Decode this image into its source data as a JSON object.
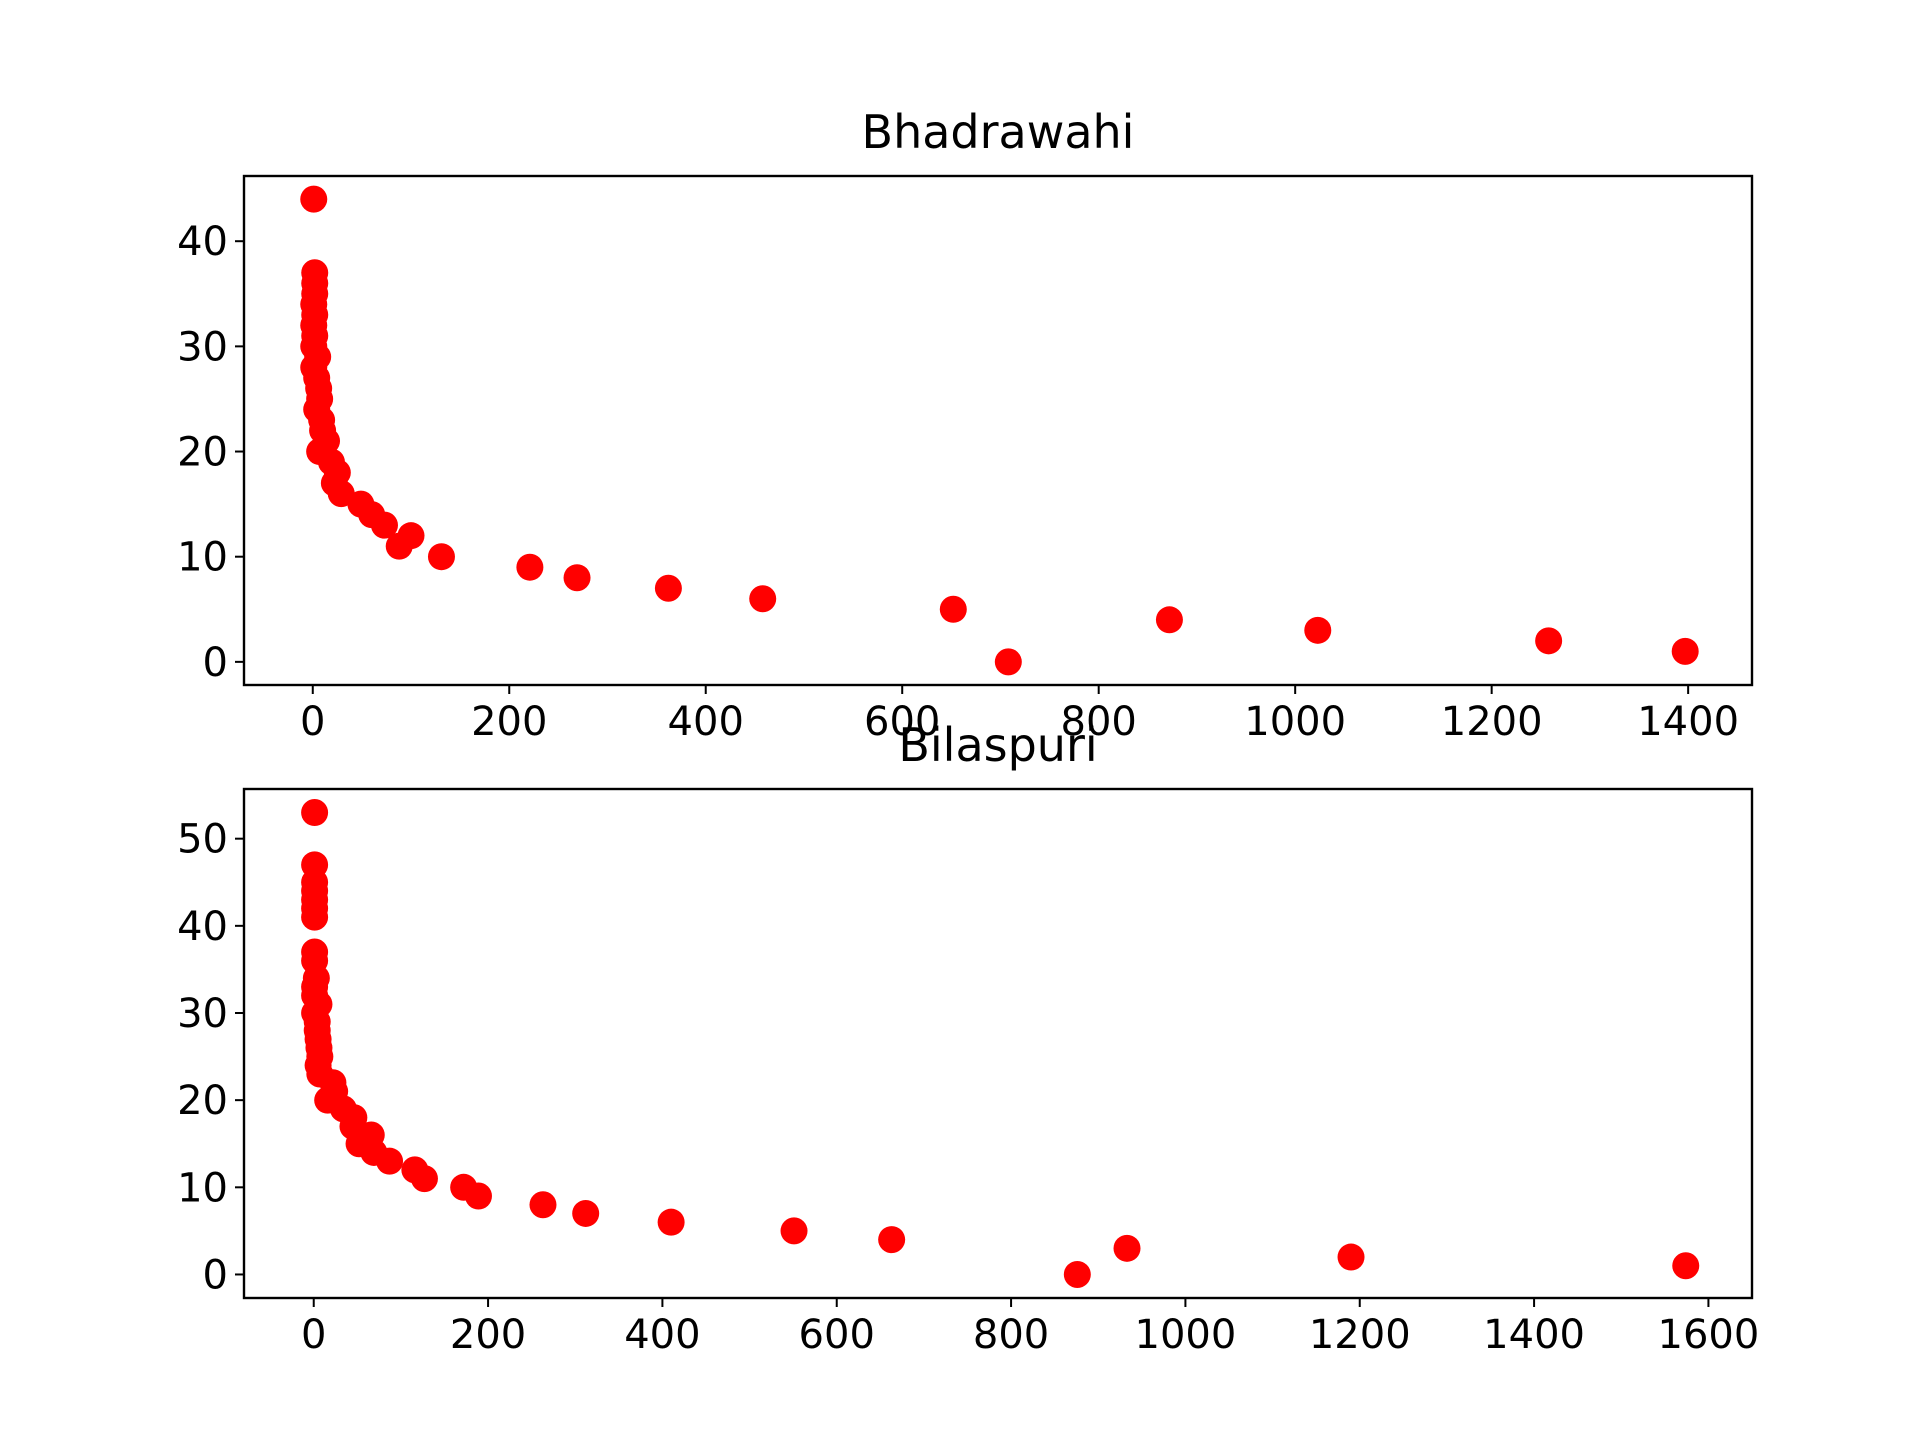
{
  "colors": {
    "marker": "#ff0000",
    "axes": "#000000",
    "background": "#ffffff"
  },
  "chart_data": [
    {
      "type": "scatter",
      "title": "Bhadrawahi",
      "xlabel": "",
      "ylabel": "",
      "xlim": [
        -70,
        1465
      ],
      "ylim": [
        -2.2,
        46.2
      ],
      "x_ticks": [
        0,
        200,
        400,
        600,
        800,
        1000,
        1200,
        1400
      ],
      "y_ticks": [
        0,
        10,
        20,
        30,
        40
      ],
      "grid": false,
      "legend": "none",
      "series": [
        {
          "marker_color": "#ff0000",
          "points": [
            [
              1,
              44
            ],
            [
              2,
              37
            ],
            [
              2,
              36
            ],
            [
              2,
              35
            ],
            [
              1,
              34
            ],
            [
              2,
              33
            ],
            [
              1,
              32
            ],
            [
              2,
              31
            ],
            [
              1,
              30
            ],
            [
              5,
              29
            ],
            [
              1,
              28
            ],
            [
              4,
              27
            ],
            [
              6,
              26
            ],
            [
              7,
              25
            ],
            [
              4,
              24
            ],
            [
              9,
              23
            ],
            [
              10,
              22
            ],
            [
              14,
              21
            ],
            [
              7,
              20
            ],
            [
              19,
              19
            ],
            [
              25,
              18
            ],
            [
              22,
              17
            ],
            [
              29,
              16
            ],
            [
              49,
              15
            ],
            [
              60,
              14
            ],
            [
              73,
              13
            ],
            [
              100,
              12
            ],
            [
              88,
              11
            ],
            [
              131,
              10
            ],
            [
              221,
              9
            ],
            [
              269,
              8
            ],
            [
              362,
              7
            ],
            [
              458,
              6
            ],
            [
              652,
              5
            ],
            [
              872,
              4
            ],
            [
              1023,
              3
            ],
            [
              1258,
              2
            ],
            [
              1397,
              1
            ],
            [
              708,
              0
            ]
          ]
        }
      ]
    },
    {
      "type": "scatter",
      "title": "Bilaspuri",
      "xlabel": "",
      "ylabel": "",
      "xlim": [
        -80,
        1650
      ],
      "ylim": [
        -2.7,
        55.7
      ],
      "x_ticks": [
        0,
        200,
        400,
        600,
        800,
        1000,
        1200,
        1400,
        1600
      ],
      "y_ticks": [
        0,
        10,
        20,
        30,
        40,
        50
      ],
      "grid": false,
      "legend": "none",
      "series": [
        {
          "marker_color": "#ff0000",
          "points": [
            [
              1,
              53
            ],
            [
              1,
              47
            ],
            [
              1,
              45
            ],
            [
              1,
              44
            ],
            [
              1,
              43
            ],
            [
              1,
              42
            ],
            [
              1,
              41
            ],
            [
              1,
              37
            ],
            [
              1,
              36
            ],
            [
              3,
              34
            ],
            [
              1,
              33
            ],
            [
              1,
              32
            ],
            [
              6,
              31
            ],
            [
              1,
              30
            ],
            [
              4,
              29
            ],
            [
              4,
              28
            ],
            [
              5,
              27
            ],
            [
              6,
              26
            ],
            [
              7,
              25
            ],
            [
              5,
              24
            ],
            [
              7,
              23
            ],
            [
              22,
              22
            ],
            [
              24,
              21
            ],
            [
              16,
              20
            ],
            [
              34,
              19
            ],
            [
              46,
              18
            ],
            [
              45,
              17
            ],
            [
              66,
              16
            ],
            [
              52,
              15
            ],
            [
              69,
              14
            ],
            [
              87,
              13
            ],
            [
              116,
              12
            ],
            [
              127,
              11
            ],
            [
              172,
              10
            ],
            [
              189,
              9
            ],
            [
              263,
              8
            ],
            [
              312,
              7
            ],
            [
              410,
              6
            ],
            [
              551,
              5
            ],
            [
              663,
              4
            ],
            [
              933,
              3
            ],
            [
              1190,
              2
            ],
            [
              1574,
              1
            ],
            [
              876,
              0
            ]
          ]
        }
      ]
    }
  ]
}
